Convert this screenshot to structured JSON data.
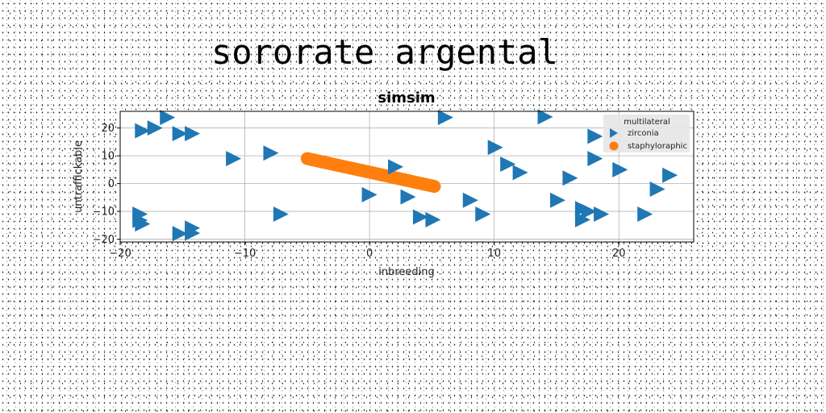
{
  "page_title": "sororate argental",
  "chart_data": {
    "type": "scatter",
    "title": "simsim",
    "xlabel": "inbreeding",
    "ylabel": "untraffickable",
    "xlim": [
      -20,
      26
    ],
    "ylim": [
      -21,
      26
    ],
    "xticks": [
      -20,
      -10,
      0,
      10,
      20
    ],
    "yticks": [
      -20,
      -10,
      0,
      10,
      20
    ],
    "grid": true,
    "legend": {
      "title": "multilateral",
      "placement": "top-right"
    },
    "series": [
      {
        "name": "zirconia",
        "marker": "triangle-right",
        "color": "#1f77b4",
        "points": [
          [
            -18.3,
            19.0
          ],
          [
            -17.3,
            20.0
          ],
          [
            -16.3,
            23.8
          ],
          [
            -15.3,
            18.0
          ],
          [
            -14.3,
            18.0
          ],
          [
            -11.0,
            9.0
          ],
          [
            -8.0,
            11.0
          ],
          [
            -7.2,
            -11.0
          ],
          [
            -18.5,
            -11.0
          ],
          [
            -18.5,
            -13.2
          ],
          [
            -18.3,
            -14.5
          ],
          [
            -15.3,
            -18.0
          ],
          [
            -14.3,
            -16.0
          ],
          [
            -14.3,
            -17.8
          ],
          [
            -0.1,
            -4.0
          ],
          [
            2.0,
            6.0
          ],
          [
            3.0,
            -4.8
          ],
          [
            4.0,
            -12.0
          ],
          [
            5.0,
            -13.0
          ],
          [
            6.0,
            23.8
          ],
          [
            8.0,
            -6.0
          ],
          [
            9.0,
            -11.0
          ],
          [
            10.0,
            13.0
          ],
          [
            11.0,
            7.0
          ],
          [
            12.0,
            4.0
          ],
          [
            14.0,
            24.0
          ],
          [
            15.0,
            -6.0
          ],
          [
            16.0,
            2.0
          ],
          [
            17.0,
            -9.0
          ],
          [
            17.0,
            -13.0
          ],
          [
            17.5,
            -10.0
          ],
          [
            18.0,
            17.0
          ],
          [
            18.0,
            9.0
          ],
          [
            18.5,
            -11.0
          ],
          [
            20.0,
            5.0
          ],
          [
            22.0,
            -11.0
          ],
          [
            23.0,
            -2.0
          ],
          [
            24.0,
            3.0
          ]
        ]
      },
      {
        "name": "staphyloraphic",
        "marker": "circle",
        "color": "#ff7f0e",
        "line": {
          "x1": -5.0,
          "y1": 9.0,
          "x2": 5.2,
          "y2": -1.0
        }
      }
    ]
  }
}
